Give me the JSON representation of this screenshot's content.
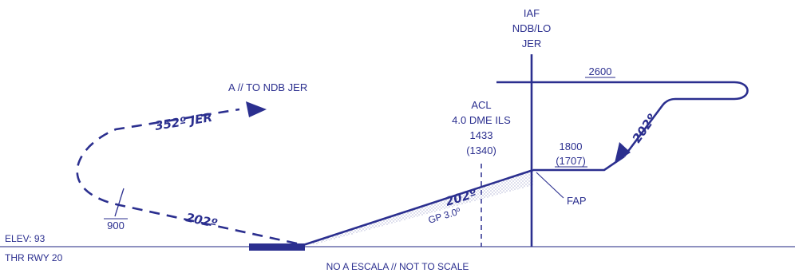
{
  "colors": {
    "ink": "#2b2f8f",
    "ground": "#4a4f9a",
    "shade": "#b9bcd6"
  },
  "fix": {
    "type": "IAF",
    "name": "NDB/LO",
    "ident": "JER"
  },
  "holding_altitude": "2600",
  "inbound_course": "202º",
  "step_altitude": {
    "top": "1800",
    "bottom": "(1707)"
  },
  "fap_label": "FAP",
  "acl": {
    "line1": "ACL",
    "line2": "4.0 DME ILS",
    "line3": "1433",
    "line4": "(1340)"
  },
  "final_course": "202º",
  "glide_path": "GP 3.0º",
  "missed_approach": {
    "instruction": "A // TO NDB JER",
    "course": "352º JER",
    "departure_course": "202º",
    "altitude": "900"
  },
  "airport": {
    "elevation": "ELEV: 93",
    "threshold": "THR RWY 20"
  },
  "scale_note": "NO A ESCALA // NOT TO SCALE"
}
